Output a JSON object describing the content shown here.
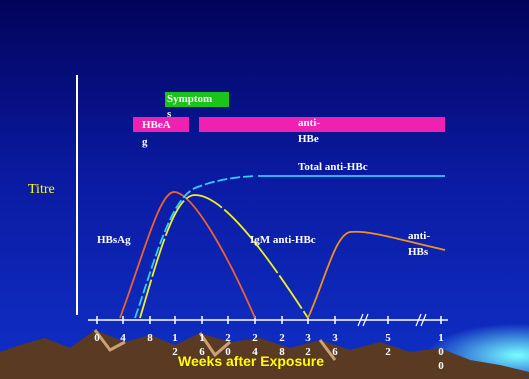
{
  "axis": {
    "y_label": "Titre",
    "x_label": "Weeks after Exposure",
    "x_ticks": [
      "0",
      "4",
      "8",
      "12",
      "16",
      "20",
      "24",
      "28",
      "32",
      "36",
      "52",
      "100"
    ]
  },
  "bars": {
    "symptoms": "Symptoms",
    "hbeag": "HBeAg",
    "anti_hbe": "anti-HBe"
  },
  "curves": {
    "total_anti_hbc": "Total anti-HBc",
    "hbsag": "HBsAg",
    "igm_anti_hbc": "IgM anti-HBc",
    "anti_hbs": "anti-HBs"
  }
}
